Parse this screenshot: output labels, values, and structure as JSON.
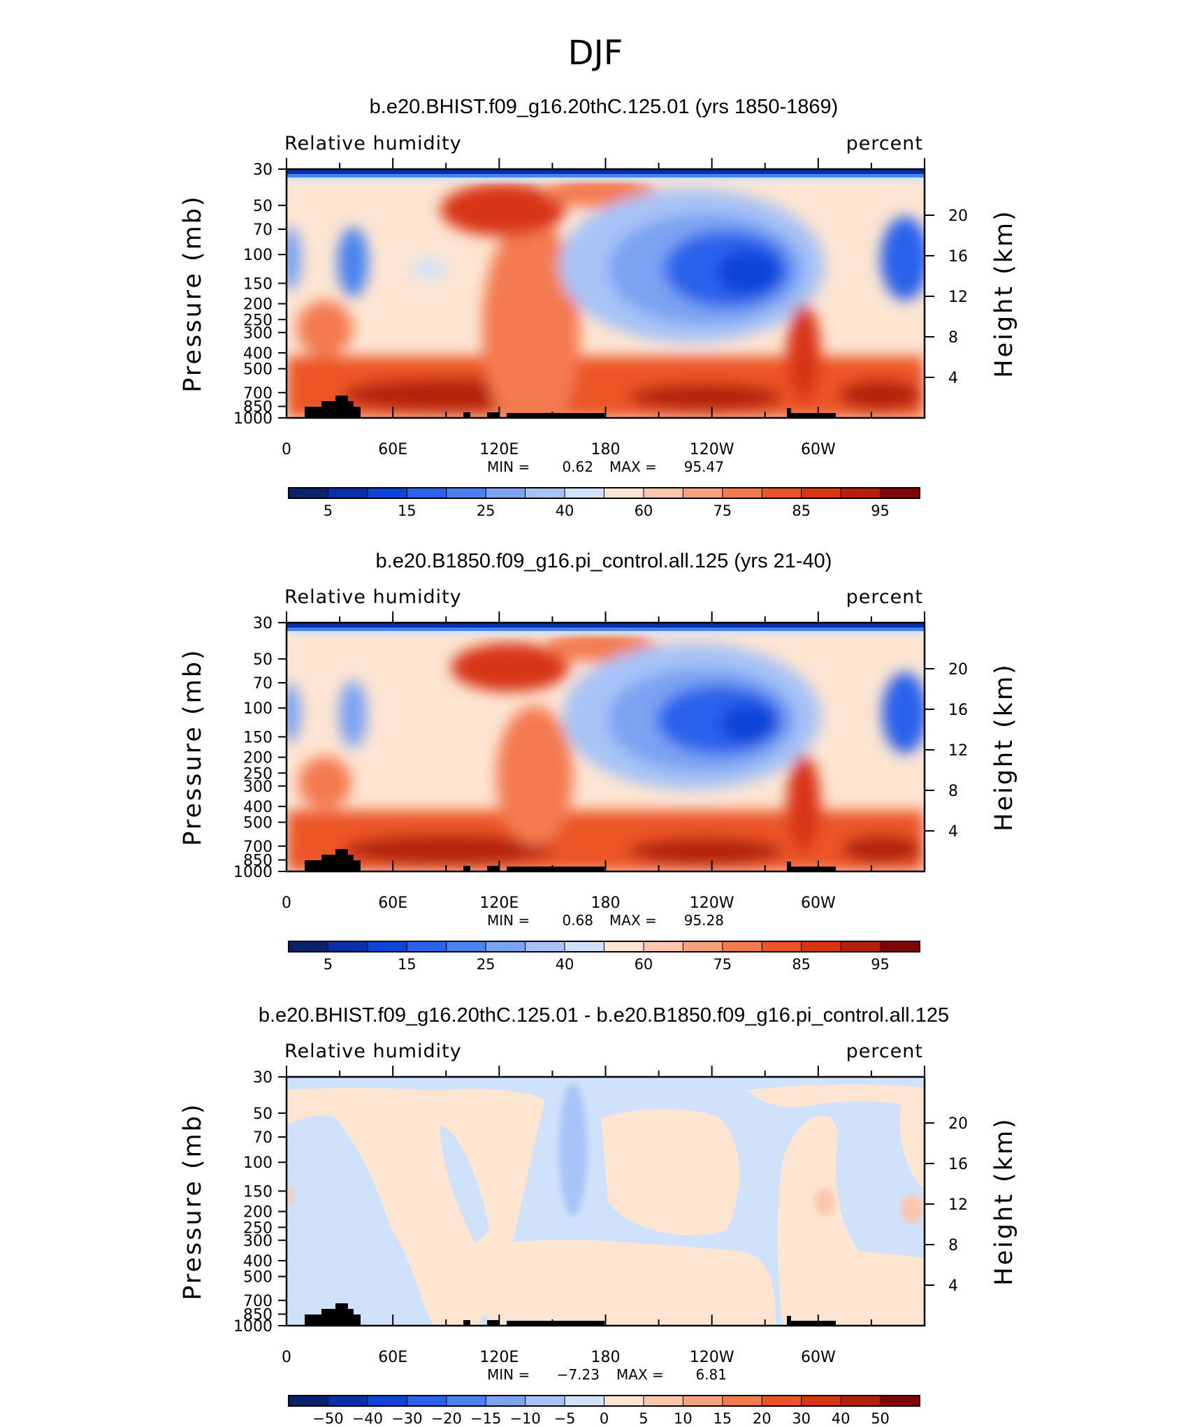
{
  "figure": {
    "title": "DJF"
  },
  "chart_data": [
    {
      "type": "heatmap",
      "title": "b.e20.BHIST.f09_g16.20thC.125.01 (yrs 1850-1869)",
      "left_label": "Relative humidity",
      "right_label": "percent",
      "ylabel": "Pressure (mb)",
      "y2label": "Height (km)",
      "x_ticks": [
        "0",
        "60E",
        "120E",
        "180",
        "120W",
        "60W"
      ],
      "y_ticks": [
        "30",
        "50",
        "70",
        "100",
        "150",
        "200",
        "250",
        "300",
        "400",
        "500",
        "700",
        "850",
        "1000"
      ],
      "y2_ticks": [
        "20",
        "16",
        "12",
        "8",
        "4"
      ],
      "stats": {
        "min_label": "MIN =",
        "min": "0.62",
        "max_label": "MAX =",
        "max": "95.47"
      },
      "colorbar_ticks": [
        "5",
        "15",
        "25",
        "40",
        "60",
        "75",
        "85",
        "95"
      ]
    },
    {
      "type": "heatmap",
      "title": "b.e20.B1850.f09_g16.pi_control.all.125 (yrs 21-40)",
      "left_label": "Relative humidity",
      "right_label": "percent",
      "ylabel": "Pressure (mb)",
      "y2label": "Height (km)",
      "x_ticks": [
        "0",
        "60E",
        "120E",
        "180",
        "120W",
        "60W"
      ],
      "y_ticks": [
        "30",
        "50",
        "70",
        "100",
        "150",
        "200",
        "250",
        "300",
        "400",
        "500",
        "700",
        "850",
        "1000"
      ],
      "y2_ticks": [
        "20",
        "16",
        "12",
        "8",
        "4"
      ],
      "stats": {
        "min_label": "MIN =",
        "min": "0.68",
        "max_label": "MAX =",
        "max": "95.28"
      },
      "colorbar_ticks": [
        "5",
        "15",
        "25",
        "40",
        "60",
        "75",
        "85",
        "95"
      ]
    },
    {
      "type": "heatmap",
      "title": "b.e20.BHIST.f09_g16.20thC.125.01 - b.e20.B1850.f09_g16.pi_control.all.125",
      "left_label": "Relative humidity",
      "right_label": "percent",
      "ylabel": "Pressure (mb)",
      "y2label": "Height (km)",
      "x_ticks": [
        "0",
        "60E",
        "120E",
        "180",
        "120W",
        "60W"
      ],
      "y_ticks": [
        "30",
        "50",
        "70",
        "100",
        "150",
        "200",
        "250",
        "300",
        "400",
        "500",
        "700",
        "850",
        "1000"
      ],
      "y2_ticks": [
        "20",
        "16",
        "12",
        "8",
        "4"
      ],
      "stats": {
        "min_label": "MIN =",
        "min": "−7.23",
        "max_label": "MAX =",
        "max": "6.81"
      },
      "colorbar_ticks": [
        "−50",
        "−40",
        "−30",
        "−20",
        "−15",
        "−10",
        "−5",
        "0",
        "5",
        "10",
        "15",
        "20",
        "30",
        "40",
        "50"
      ]
    }
  ],
  "colors": {
    "scale": [
      "#08226b",
      "#0a2fa8",
      "#0e44d8",
      "#2a62ec",
      "#4a82f0",
      "#7aa3f2",
      "#a7c3f6",
      "#d0e2fb",
      "#fde5d2",
      "#fbc6ab",
      "#f7a17e",
      "#f47a50",
      "#ec5428",
      "#d83612",
      "#b4200c",
      "#7e0606"
    ],
    "terrain": "#000000"
  }
}
